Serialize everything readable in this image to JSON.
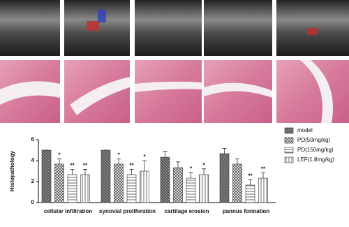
{
  "chart_data": {
    "type": "bar",
    "y_label": "Histopathology",
    "categories": [
      "cellular infiltration",
      "synovial proliferation",
      "cartilage erosion",
      "pannus formation"
    ],
    "series": [
      {
        "name": "model",
        "color": "#555555",
        "hatch": "dense",
        "values": [
          5.0,
          5.0,
          4.33,
          4.67
        ],
        "errors": [
          0,
          0,
          0.55,
          0.5
        ],
        "annotations": [
          null,
          null,
          null,
          null
        ]
      },
      {
        "name": "PD(50mg/kg)",
        "color": "#444444",
        "hatch": "cross",
        "values": [
          3.67,
          3.67,
          3.33,
          3.67
        ],
        "errors": [
          0.5,
          0.5,
          0.55,
          0.5
        ],
        "annotations": [
          "*",
          "*",
          null,
          null
        ]
      },
      {
        "name": "PD(150mg/kg)",
        "color": "#444444",
        "hatch": "horizontal",
        "values": [
          2.67,
          2.67,
          2.33,
          1.67
        ],
        "errors": [
          0.5,
          0.5,
          0.55,
          0.5
        ],
        "annotations": [
          "**",
          "**",
          "*",
          "**"
        ]
      },
      {
        "name": "LEF(1.8mg/kg)",
        "color": "#444444",
        "hatch": "vertical",
        "values": [
          2.67,
          3.0,
          2.67,
          2.33
        ],
        "errors": [
          0.5,
          1.0,
          0.55,
          0.5
        ],
        "annotations": [
          "**",
          "*",
          "*",
          "**"
        ]
      }
    ],
    "ylim": [
      0,
      6
    ],
    "yticks": [
      0,
      2,
      4,
      6
    ],
    "grid": false
  }
}
